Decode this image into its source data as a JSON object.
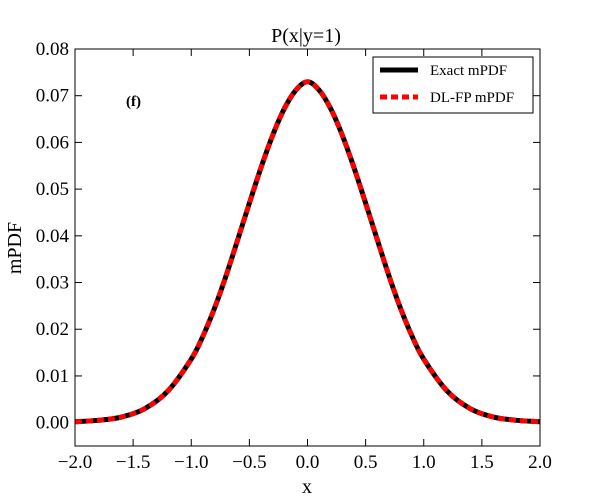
{
  "chart_data": {
    "type": "line",
    "title": "P(x|y=1)",
    "xlabel": "x",
    "ylabel": "mPDF",
    "panel_label": "(f)",
    "xlim": [
      -2.0,
      2.0
    ],
    "ylim": [
      -0.005,
      0.08
    ],
    "x_ticks": [
      -2.0,
      -1.5,
      -1.0,
      -0.5,
      0.0,
      0.5,
      1.0,
      1.5,
      2.0
    ],
    "x_tick_labels": [
      "−2.0",
      "−1.5",
      "−1.0",
      "−0.5",
      "0.0",
      "0.5",
      "1.0",
      "1.5",
      "2.0"
    ],
    "y_ticks": [
      0.0,
      0.01,
      0.02,
      0.03,
      0.04,
      0.05,
      0.06,
      0.07,
      0.08
    ],
    "y_tick_labels": [
      "0.00",
      "0.01",
      "0.02",
      "0.03",
      "0.04",
      "0.05",
      "0.06",
      "0.07",
      "0.08"
    ],
    "legend_position": "top-right",
    "series": [
      {
        "name": "Exact mPDF",
        "color": "#000000",
        "style": "solid",
        "x": [
          -2.0,
          -1.8,
          -1.6,
          -1.4,
          -1.2,
          -1.0,
          -0.9,
          -0.8,
          -0.7,
          -0.6,
          -0.5,
          -0.4,
          -0.3,
          -0.2,
          -0.1,
          0.0,
          0.1,
          0.2,
          0.3,
          0.4,
          0.5,
          0.6,
          0.7,
          0.8,
          0.9,
          1.0,
          1.2,
          1.4,
          1.6,
          1.8,
          2.0
        ],
        "y": [
          0.0002,
          0.0005,
          0.0012,
          0.003,
          0.0068,
          0.0136,
          0.0185,
          0.0245,
          0.0315,
          0.0392,
          0.047,
          0.0546,
          0.0615,
          0.0672,
          0.0712,
          0.073,
          0.0712,
          0.0672,
          0.0615,
          0.0546,
          0.047,
          0.0392,
          0.0315,
          0.0245,
          0.0185,
          0.0136,
          0.0068,
          0.003,
          0.0012,
          0.0005,
          0.0002
        ]
      },
      {
        "name": "DL-FP mPDF",
        "color": "#ff0000",
        "style": "dashed",
        "x": [
          -2.0,
          -1.8,
          -1.6,
          -1.4,
          -1.2,
          -1.0,
          -0.9,
          -0.8,
          -0.7,
          -0.6,
          -0.5,
          -0.4,
          -0.3,
          -0.2,
          -0.1,
          0.0,
          0.1,
          0.2,
          0.3,
          0.4,
          0.5,
          0.6,
          0.7,
          0.8,
          0.9,
          1.0,
          1.2,
          1.4,
          1.6,
          1.8,
          2.0
        ],
        "y": [
          0.0002,
          0.0005,
          0.0012,
          0.003,
          0.0068,
          0.0136,
          0.0185,
          0.0245,
          0.0315,
          0.0392,
          0.047,
          0.0546,
          0.0615,
          0.0672,
          0.0712,
          0.073,
          0.0712,
          0.0672,
          0.0615,
          0.0546,
          0.047,
          0.0392,
          0.0315,
          0.0245,
          0.0185,
          0.0136,
          0.0068,
          0.003,
          0.0012,
          0.0005,
          0.0002
        ]
      }
    ]
  }
}
